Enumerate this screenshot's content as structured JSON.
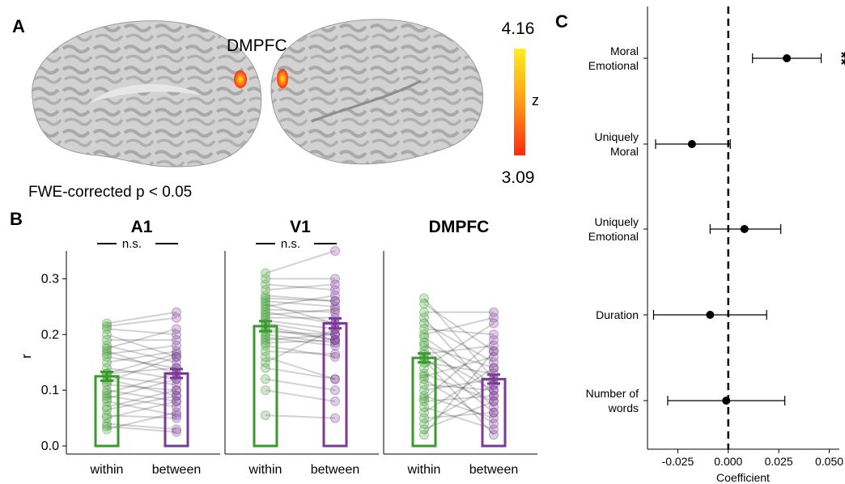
{
  "panel_labels": {
    "a": "A",
    "b": "B",
    "c": "C"
  },
  "brain": {
    "region_label": "DMPFC",
    "colorbar_max": "4.16",
    "colorbar_min": "3.09",
    "colorbar_label": "z",
    "colorbar_colors": [
      "#ffee22",
      "#ff9a1a",
      "#ff2a10"
    ],
    "threshold_text": "FWE-corrected p < 0.05"
  },
  "chart_data": [
    {
      "type": "bar",
      "panel": "B",
      "ylabel": "r",
      "ylim": [
        0,
        0.35
      ],
      "yticks": [
        "0.0",
        "0.1",
        "0.2",
        "0.3"
      ],
      "categories": [
        "within",
        "between"
      ],
      "colors": {
        "within": "#3a9a2e",
        "between": "#7b3a96"
      },
      "facets": [
        {
          "title": "A1",
          "within": 0.125,
          "between": 0.13,
          "within_err": 0.008,
          "between_err": 0.008,
          "annotation": "n.s.",
          "within_points": [
            0.22,
            0.215,
            0.21,
            0.2,
            0.19,
            0.18,
            0.175,
            0.17,
            0.165,
            0.16,
            0.15,
            0.14,
            0.13,
            0.125,
            0.12,
            0.115,
            0.11,
            0.1,
            0.095,
            0.09,
            0.085,
            0.08,
            0.07,
            0.065,
            0.055,
            0.05,
            0.04,
            0.03,
            0.035,
            0.13
          ],
          "between_points": [
            0.24,
            0.23,
            0.2,
            0.16,
            0.19,
            0.15,
            0.21,
            0.13,
            0.18,
            0.14,
            0.17,
            0.12,
            0.165,
            0.11,
            0.09,
            0.16,
            0.1,
            0.08,
            0.13,
            0.07,
            0.12,
            0.055,
            0.1,
            0.09,
            0.05,
            0.08,
            0.03,
            0.06,
            0.025,
            0.14
          ]
        },
        {
          "title": "V1",
          "within": 0.215,
          "between": 0.22,
          "within_err": 0.009,
          "between_err": 0.009,
          "annotation": "n.s.",
          "within_points": [
            0.31,
            0.3,
            0.29,
            0.28,
            0.27,
            0.26,
            0.25,
            0.245,
            0.24,
            0.23,
            0.225,
            0.22,
            0.215,
            0.21,
            0.205,
            0.2,
            0.195,
            0.19,
            0.18,
            0.17,
            0.16,
            0.15,
            0.14,
            0.12,
            0.1,
            0.055,
            0.235,
            0.185,
            0.265,
            0.255
          ],
          "between_points": [
            0.35,
            0.3,
            0.28,
            0.29,
            0.26,
            0.25,
            0.27,
            0.24,
            0.22,
            0.23,
            0.21,
            0.2,
            0.19,
            0.19,
            0.2,
            0.185,
            0.18,
            0.2,
            0.16,
            0.165,
            0.12,
            0.21,
            0.12,
            0.1,
            0.08,
            0.05,
            0.245,
            0.19,
            0.26,
            0.22
          ]
        },
        {
          "title": "DMPFC",
          "within": 0.158,
          "between": 0.12,
          "within_err": 0.008,
          "between_err": 0.008,
          "annotation": "",
          "within_points": [
            0.265,
            0.255,
            0.24,
            0.23,
            0.22,
            0.21,
            0.2,
            0.195,
            0.185,
            0.18,
            0.17,
            0.165,
            0.16,
            0.15,
            0.14,
            0.13,
            0.125,
            0.12,
            0.11,
            0.1,
            0.09,
            0.085,
            0.08,
            0.07,
            0.06,
            0.05,
            0.04,
            0.03,
            0.02,
            0.155
          ],
          "between_points": [
            0.12,
            0.17,
            0.24,
            0.09,
            0.15,
            0.2,
            0.23,
            0.11,
            0.07,
            0.14,
            0.1,
            0.18,
            0.06,
            0.13,
            0.22,
            0.08,
            0.16,
            0.04,
            0.1,
            0.12,
            0.05,
            0.19,
            0.09,
            0.03,
            0.14,
            0.06,
            0.11,
            0.08,
            0.17,
            0.02
          ]
        }
      ]
    },
    {
      "type": "scatter",
      "panel": "C",
      "subtype": "coefficient-plot",
      "xlabel": "Coefficient",
      "xlim": [
        -0.04,
        0.055
      ],
      "xticks": [
        -0.025,
        0.0,
        0.025,
        0.05
      ],
      "xtick_labels": [
        "-0.025",
        "0.000",
        "0.025",
        "0.050"
      ],
      "reference_line": 0.0,
      "predictors": [
        {
          "label": [
            "Moral",
            "Emotional"
          ],
          "estimate": 0.029,
          "ci_low": 0.012,
          "ci_high": 0.046,
          "significance": "**"
        },
        {
          "label": [
            "Uniquely",
            "Moral"
          ],
          "estimate": -0.018,
          "ci_low": -0.036,
          "ci_high": 0.001,
          "significance": ""
        },
        {
          "label": [
            "Uniquely",
            "Emotional"
          ],
          "estimate": 0.008,
          "ci_low": -0.009,
          "ci_high": 0.026,
          "significance": ""
        },
        {
          "label": [
            "Duration"
          ],
          "estimate": -0.009,
          "ci_low": -0.037,
          "ci_high": 0.019,
          "significance": ""
        },
        {
          "label": [
            "Number of",
            "words"
          ],
          "estimate": -0.001,
          "ci_low": -0.03,
          "ci_high": 0.028,
          "significance": ""
        }
      ]
    }
  ]
}
